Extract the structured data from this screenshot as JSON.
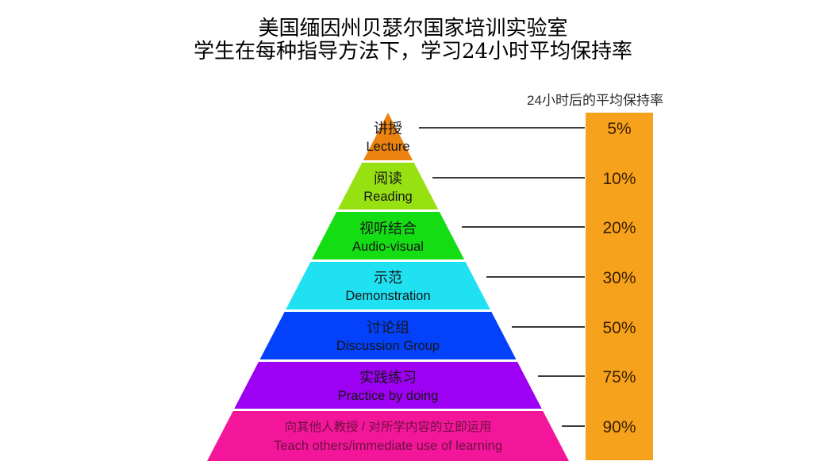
{
  "title": {
    "line1": "美国缅因州贝瑟尔国家培训实验室",
    "line2": "学生在每种指导方法下，学习24小时平均保持率"
  },
  "scale_bar": {
    "header": "24小时后的平均保持率",
    "color": "#F7A21D",
    "value_color": "#3A2000"
  },
  "chart_data": {
    "type": "pyramid",
    "title": "美国缅因州贝瑟尔国家培训实验室 学生在每种指导方法下，学习24小时平均保持率",
    "value_axis_label": "24小时后的平均保持率",
    "levels": [
      {
        "label_zh": "讲授",
        "label_en": "Lecture",
        "retention": "5%",
        "retention_percent": 5,
        "color": "#EC820F"
      },
      {
        "label_zh": "阅读",
        "label_en": "Reading",
        "retention": "10%",
        "retention_percent": 10,
        "color": "#97E011"
      },
      {
        "label_zh": "视听结合",
        "label_en": "Audio-visual",
        "retention": "20%",
        "retention_percent": 20,
        "color": "#14DD14"
      },
      {
        "label_zh": "示范",
        "label_en": "Demonstration",
        "retention": "30%",
        "retention_percent": 30,
        "color": "#1FE1F2"
      },
      {
        "label_zh": "讨论组",
        "label_en": "Discussion Group",
        "retention": "50%",
        "retention_percent": 50,
        "color": "#0341FA"
      },
      {
        "label_zh": "实践练习",
        "label_en": "Practice by doing",
        "retention": "75%",
        "retention_percent": 75,
        "color": "#9D00F2"
      },
      {
        "label_zh": "向其他人教授 / 对所学内容的立即运用",
        "label_en": "Teach others/immediate use of learning",
        "retention": "90%",
        "retention_percent": 90,
        "color": "#F3169B",
        "label_color": "#6E1040"
      }
    ]
  }
}
